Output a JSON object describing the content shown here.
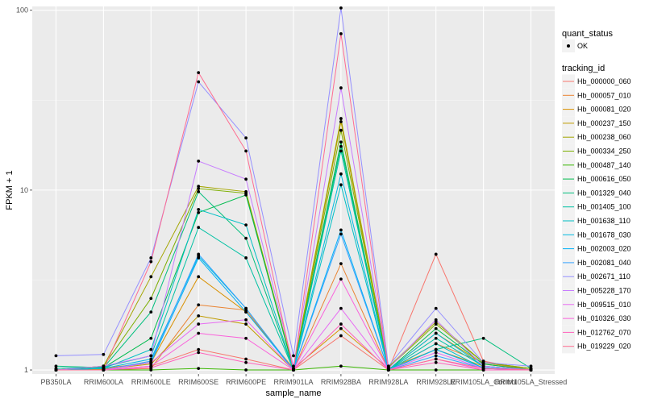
{
  "chart_data": {
    "type": "line",
    "xlabel": "sample_name",
    "ylabel": "FPKM + 1",
    "y_scale": "log10",
    "ylim": [
      0.95,
      105
    ],
    "y_ticks": [
      1,
      10,
      100
    ],
    "y_tick_labels": [
      "1",
      "10",
      "100"
    ],
    "grid": true,
    "legend_position": "right",
    "categories": [
      "PB350LA",
      "RRIM600LA",
      "RRIM600LE",
      "RRIM600SE",
      "RRIM600PE",
      "RRIM901LA",
      "RRIM928BA",
      "RRIM928LA",
      "RRIM928LE",
      "RRIM105LA_Control",
      "RRIM105LA_Stressed"
    ],
    "point_legend": {
      "title": "quant_status",
      "entries": [
        "OK"
      ]
    },
    "color_legend_title": "tracking_id",
    "series": [
      {
        "name": "Hb_000000_060",
        "color": "#F8766D",
        "values": [
          1.0,
          1.0,
          1.05,
          1.3,
          1.15,
          1.0,
          1.55,
          1.0,
          4.4,
          1.12,
          1.0
        ]
      },
      {
        "name": "Hb_000057_010",
        "color": "#EA8331",
        "values": [
          1.0,
          1.0,
          1.02,
          2.3,
          2.15,
          1.0,
          3.9,
          1.0,
          1.4,
          1.1,
          1.0
        ]
      },
      {
        "name": "Hb_000081_020",
        "color": "#D89000",
        "values": [
          1.0,
          1.02,
          1.1,
          3.3,
          2.1,
          1.02,
          1.7,
          1.02,
          1.3,
          1.05,
          1.0
        ]
      },
      {
        "name": "Hb_000237_150",
        "color": "#C09B00",
        "values": [
          1.0,
          1.01,
          1.08,
          2.0,
          1.8,
          1.0,
          24.0,
          1.0,
          1.6,
          1.08,
          1.0
        ]
      },
      {
        "name": "Hb_000238_060",
        "color": "#A3A500",
        "values": [
          1.0,
          1.05,
          3.3,
          10.5,
          9.8,
          1.02,
          25.0,
          1.04,
          1.85,
          1.1,
          1.02
        ]
      },
      {
        "name": "Hb_000334_250",
        "color": "#7CAE00",
        "values": [
          1.0,
          1.05,
          2.5,
          10.2,
          9.6,
          1.0,
          21.5,
          1.03,
          1.8,
          1.1,
          1.02
        ]
      },
      {
        "name": "Hb_000487_140",
        "color": "#39B600",
        "values": [
          1.0,
          1.0,
          1.0,
          1.02,
          1.0,
          1.0,
          1.05,
          1.0,
          1.0,
          1.0,
          1.0
        ]
      },
      {
        "name": "Hb_000616_050",
        "color": "#00BB4E",
        "values": [
          1.0,
          1.03,
          1.5,
          7.5,
          9.4,
          1.0,
          18.5,
          1.0,
          1.7,
          1.08,
          1.0
        ]
      },
      {
        "name": "Hb_001329_040",
        "color": "#00BF7D",
        "values": [
          1.05,
          1.03,
          2.1,
          9.8,
          5.4,
          1.0,
          17.5,
          1.0,
          1.3,
          1.5,
          1.02
        ]
      },
      {
        "name": "Hb_001405_100",
        "color": "#00C1A3",
        "values": [
          1.02,
          1.04,
          1.2,
          6.2,
          4.2,
          1.0,
          16.5,
          1.0,
          1.5,
          1.05,
          1.0
        ]
      },
      {
        "name": "Hb_001638_110",
        "color": "#00BFC4",
        "values": [
          1.0,
          1.02,
          1.3,
          7.8,
          6.4,
          1.0,
          10.7,
          1.0,
          1.4,
          1.02,
          1.0
        ]
      },
      {
        "name": "Hb_001678_030",
        "color": "#00BAE0",
        "values": [
          1.0,
          1.02,
          1.15,
          4.3,
          2.2,
          1.0,
          12.3,
          1.0,
          1.6,
          1.05,
          1.0
        ]
      },
      {
        "name": "Hb_002003_020",
        "color": "#00B0F6",
        "values": [
          1.0,
          1.0,
          1.1,
          4.2,
          2.1,
          1.0,
          6.0,
          1.0,
          1.3,
          1.03,
          1.0
        ]
      },
      {
        "name": "Hb_002081_040",
        "color": "#35A2FF",
        "values": [
          1.0,
          1.0,
          1.12,
          4.4,
          2.2,
          1.0,
          5.7,
          1.0,
          1.2,
          1.02,
          1.0
        ]
      },
      {
        "name": "Hb_002671_110",
        "color": "#9590FF",
        "values": [
          1.2,
          1.22,
          4.2,
          40.0,
          19.5,
          1.2,
          103.0,
          1.05,
          2.2,
          1.1,
          1.05
        ]
      },
      {
        "name": "Hb_005228_170",
        "color": "#C77CFF",
        "values": [
          1.0,
          1.05,
          1.2,
          14.5,
          11.5,
          1.05,
          37.0,
          1.02,
          1.9,
          1.05,
          1.0
        ]
      },
      {
        "name": "Hb_009515_010",
        "color": "#E76BF3",
        "values": [
          1.0,
          1.0,
          1.1,
          1.8,
          1.9,
          1.0,
          2.2,
          1.0,
          1.25,
          1.02,
          1.0
        ]
      },
      {
        "name": "Hb_010326_030",
        "color": "#FA62DB",
        "values": [
          1.0,
          1.0,
          1.05,
          1.6,
          1.5,
          1.0,
          3.2,
          1.0,
          1.15,
          1.0,
          1.0
        ]
      },
      {
        "name": "Hb_012762_070",
        "color": "#FF62BC",
        "values": [
          1.0,
          1.0,
          1.03,
          1.25,
          1.1,
          1.0,
          1.8,
          1.0,
          1.1,
          1.0,
          1.0
        ]
      },
      {
        "name": "Hb_019229_020",
        "color": "#FF6C91",
        "values": [
          1.0,
          1.0,
          4.0,
          45.0,
          16.5,
          1.0,
          74.0,
          1.0,
          1.15,
          1.02,
          1.0
        ]
      }
    ]
  }
}
